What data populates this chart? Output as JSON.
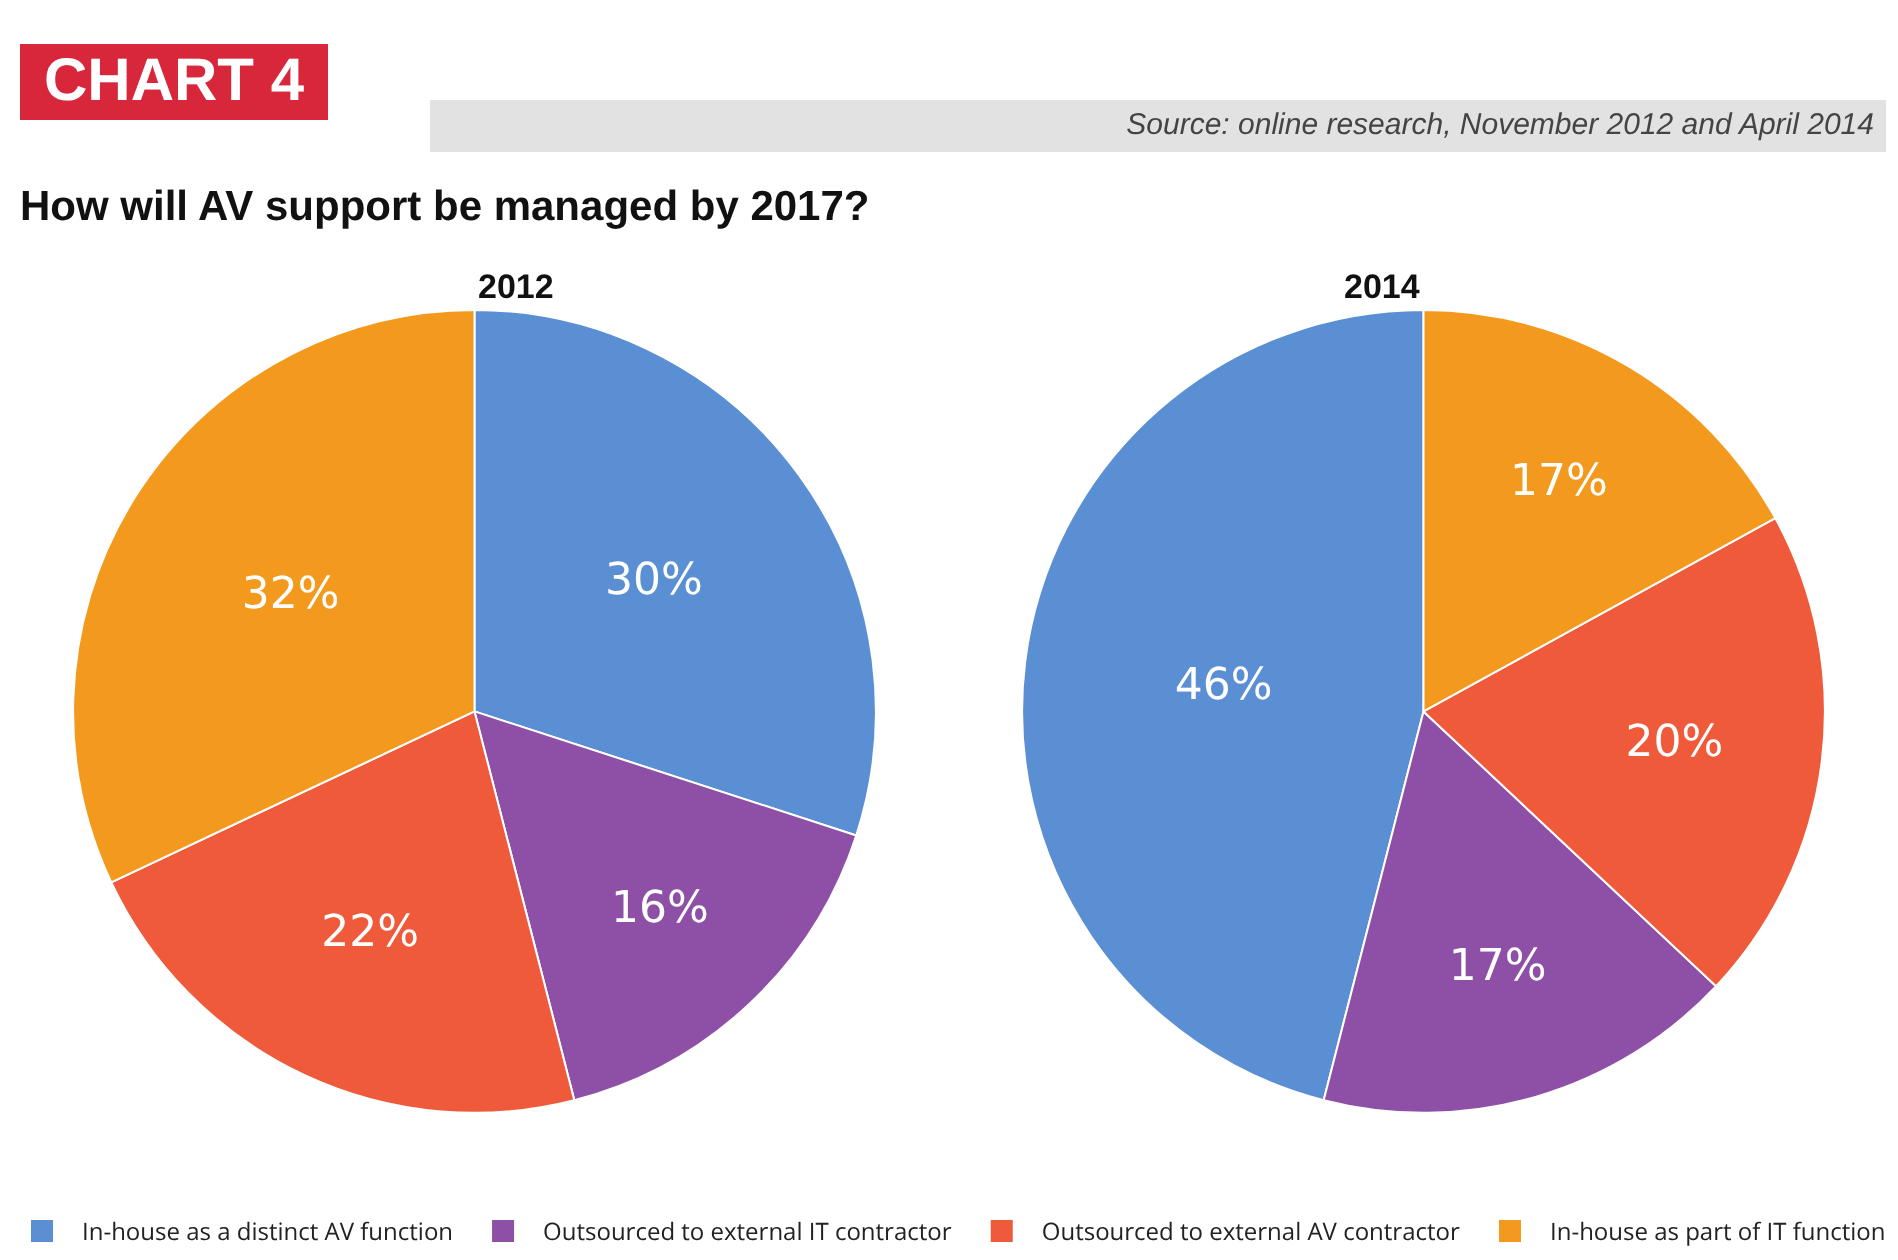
{
  "chart_data": {
    "type": "pie",
    "title": "How will AV support be managed by 2017?",
    "annotations": [
      "CHART 4",
      "Source: online research, November 2012 and April 2014"
    ],
    "categories": [
      "In-house as a distinct AV function",
      "Outsourced to external IT contractor",
      "Outsourced to external AV contractor",
      "In-house as part of IT function"
    ],
    "colors": [
      "#5b8fd4",
      "#8e4fa6",
      "#ee5a3a",
      "#f39a1e"
    ],
    "series": [
      {
        "name": "2012",
        "values": [
          30,
          16,
          22,
          32
        ],
        "value_labels": [
          "30%",
          "16%",
          "22%",
          "32%"
        ]
      },
      {
        "name": "2014",
        "values": [
          46,
          17,
          20,
          17
        ],
        "value_labels": [
          "46%",
          "17%",
          "20%",
          "17%"
        ]
      }
    ],
    "legend": "bottom"
  }
}
